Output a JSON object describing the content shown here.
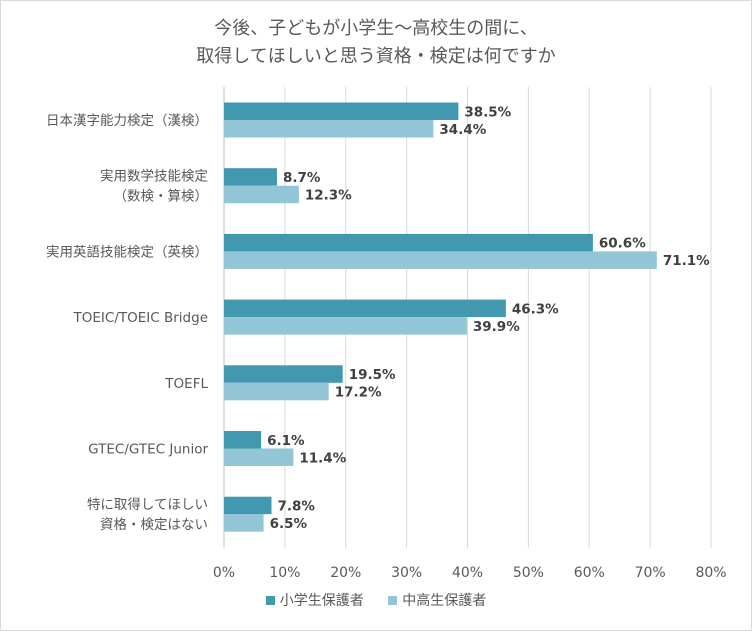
{
  "chart_data": {
    "type": "bar",
    "orientation": "horizontal",
    "title_lines": [
      "今後、子どもが小学生～高校生の間に、",
      "取得してほしいと思う資格・検定は何ですか"
    ],
    "categories": [
      [
        "日本漢字能力検定（漢検）"
      ],
      [
        "実用数学技能検定",
        "（数検・算検）"
      ],
      [
        "実用英語技能検定（英検）"
      ],
      [
        "TOEIC/TOEIC Bridge"
      ],
      [
        "TOEFL"
      ],
      [
        "GTEC/GTEC Junior"
      ],
      [
        "特に取得してほしい",
        "資格・検定はない"
      ]
    ],
    "series": [
      {
        "name": "小学生保護者",
        "color": "#4198af",
        "values": [
          38.5,
          8.7,
          60.6,
          46.3,
          19.5,
          6.1,
          7.8
        ]
      },
      {
        "name": "中高生保護者",
        "color": "#92c5d6",
        "values": [
          34.4,
          12.3,
          71.1,
          39.9,
          17.2,
          11.4,
          6.5
        ]
      }
    ],
    "value_labels": [
      [
        "38.5%",
        "8.7%",
        "60.6%",
        "46.3%",
        "19.5%",
        "6.1%",
        "7.8%"
      ],
      [
        "34.4%",
        "12.3%",
        "71.1%",
        "39.9%",
        "17.2%",
        "11.4%",
        "6.5%"
      ]
    ],
    "x_ticks": [
      "0%",
      "10%",
      "20%",
      "30%",
      "40%",
      "50%",
      "60%",
      "70%",
      "80%"
    ],
    "xlim": [
      0,
      80
    ],
    "grid": true,
    "legend_position": "bottom"
  }
}
